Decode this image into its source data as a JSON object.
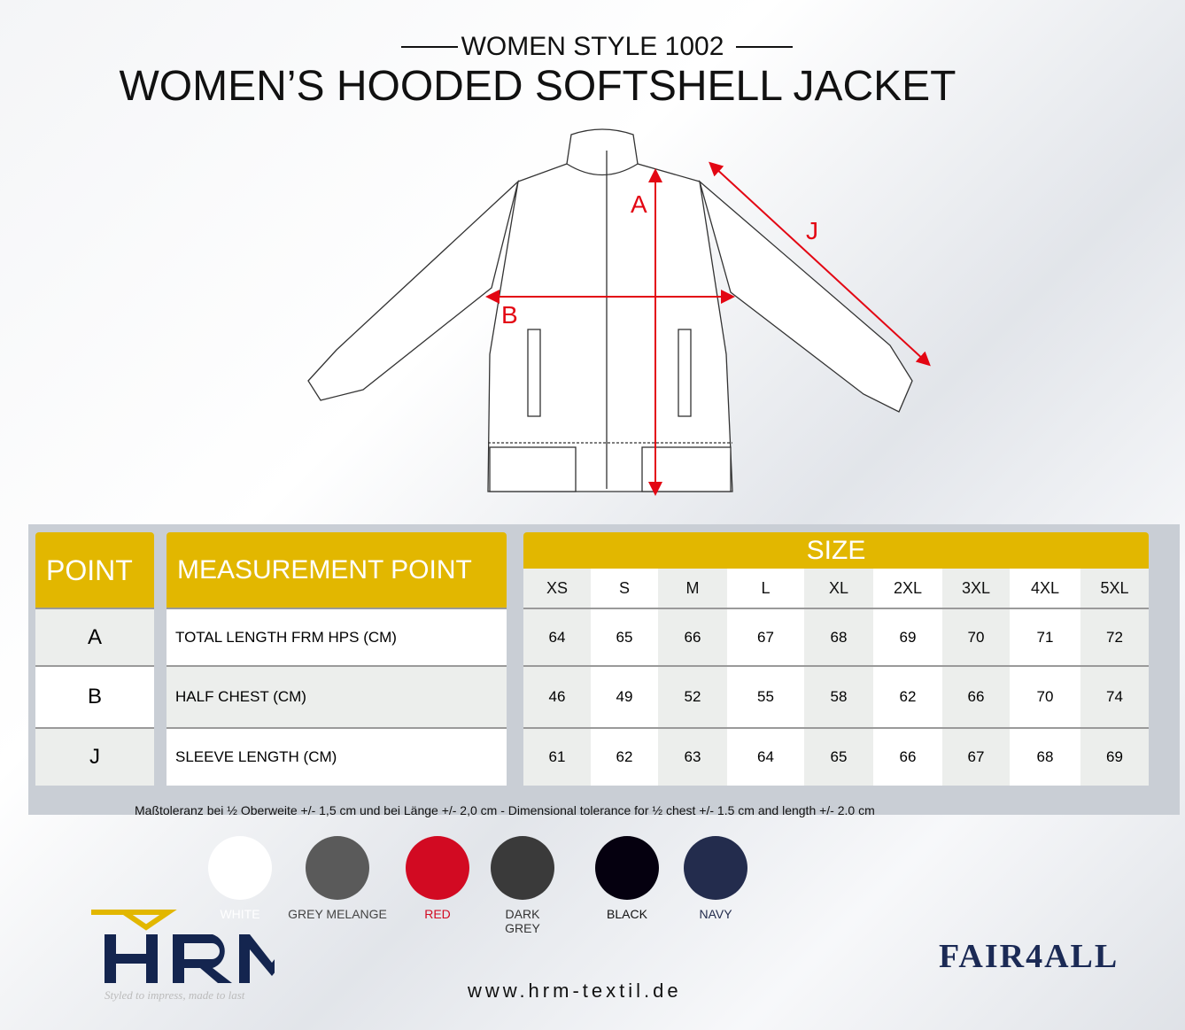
{
  "header": {
    "subtitle": "WOMEN STYLE 1002",
    "title": "WOMEN’S HOODED SOFTSHELL JACKET"
  },
  "diagram": {
    "labels": [
      "A",
      "B",
      "J"
    ],
    "arrow_color": "#e30613"
  },
  "table": {
    "point_header": "POINT",
    "measurement_header": "MEASUREMENT POINT",
    "size_header": "SIZE",
    "sizes": [
      "XS",
      "S",
      "M",
      "L",
      "XL",
      "2XL",
      "3XL",
      "4XL",
      "5XL"
    ],
    "rows": [
      {
        "point": "A",
        "measurement": "TOTAL LENGTH FRM HPS (CM)",
        "values": [
          "64",
          "65",
          "66",
          "67",
          "68",
          "69",
          "70",
          "71",
          "72"
        ]
      },
      {
        "point": "B",
        "measurement": "HALF CHEST (CM)",
        "values": [
          "46",
          "49",
          "52",
          "55",
          "58",
          "62",
          "66",
          "70",
          "74"
        ]
      },
      {
        "point": "J",
        "measurement": "SLEEVE LENGTH (CM)",
        "values": [
          "61",
          "62",
          "63",
          "64",
          "65",
          "66",
          "67",
          "68",
          "69"
        ]
      }
    ],
    "header_color": "#e2b700"
  },
  "tolerance": "Maßtoleranz bei ½ Oberweite +/- 1,5 cm und bei Länge +/- 2,0 cm - Dimensional tolerance for ½ chest +/- 1.5 cm and length +/- 2.0 cm",
  "colors": [
    {
      "name": "WHITE",
      "hex": "#ffffff",
      "label_color": "#ffffff"
    },
    {
      "name": "GREY MELANGE",
      "hex": "#5a5a5a",
      "label_color": "#444"
    },
    {
      "name": "RED",
      "hex": "#d20a22",
      "label_color": "#d20a22"
    },
    {
      "name": "DARK GREY",
      "hex": "#3a3a3a",
      "label_color": "#333"
    },
    {
      "name": "BLACK",
      "hex": "#05000f",
      "label_color": "#111"
    },
    {
      "name": "NAVY",
      "hex": "#232c4d",
      "label_color": "#232c4d"
    }
  ],
  "brand": {
    "logo": "HRM",
    "tagline": "Styled to impress, made to last",
    "website": "www.hrm-textil.de",
    "partner": "FAIR4ALL"
  }
}
